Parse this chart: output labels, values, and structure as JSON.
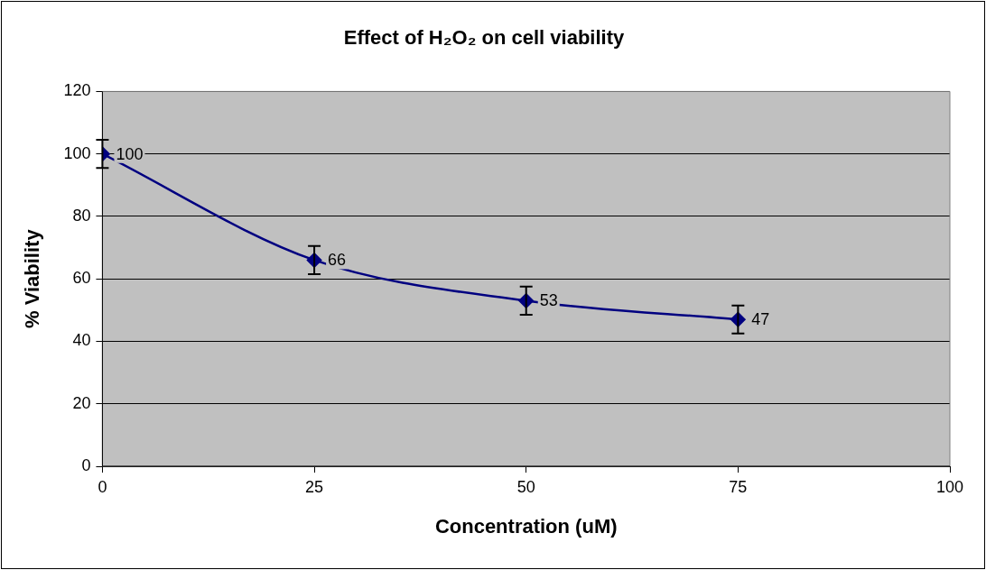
{
  "chart_data": {
    "type": "line",
    "title": "Effect of H₂O₂ on cell viability",
    "xlabel": "Concentration (uM)",
    "ylabel": "% Viability",
    "x": [
      0,
      25,
      50,
      75
    ],
    "series": [
      {
        "color": "#000080",
        "values": [
          100,
          66,
          53,
          47
        ],
        "errors": [
          4.5,
          4.5,
          4.5,
          4.5
        ]
      }
    ],
    "xlim": [
      0,
      100
    ],
    "xticks": [
      0,
      25,
      50,
      75,
      100
    ],
    "ylim": [
      0,
      120
    ],
    "yticks": [
      0,
      20,
      40,
      60,
      80,
      100,
      120
    ],
    "grid": "y",
    "legend": false,
    "marker": "diamond",
    "line_style": "solid",
    "data_labels": true
  }
}
